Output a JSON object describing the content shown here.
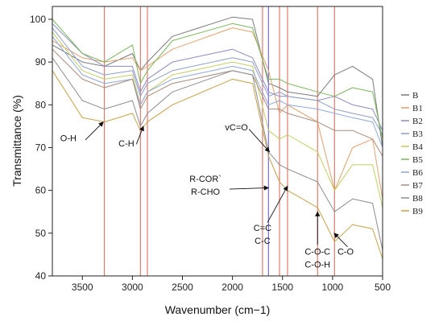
{
  "chart_data": {
    "type": "line",
    "xlabel": "Wavenumber (cm−1)",
    "ylabel": "Transmittance (%)",
    "xlim": [
      3800,
      500
    ],
    "ylim": [
      40,
      103
    ],
    "x_reversed": true,
    "x_ticks": [
      3500,
      3000,
      2500,
      2000,
      1500,
      1000,
      500
    ],
    "y_ticks": [
      40,
      50,
      60,
      70,
      80,
      90,
      100
    ],
    "reference_lines": [
      {
        "x": 3280,
        "color": "#e07b6e"
      },
      {
        "x": 2920,
        "color": "#e07b6e"
      },
      {
        "x": 2850,
        "color": "#e07b6e"
      },
      {
        "x": 1700,
        "color": "#e07b6e"
      },
      {
        "x": 1640,
        "color": "#7b6fe0"
      },
      {
        "x": 1530,
        "color": "#e07b6e"
      },
      {
        "x": 1450,
        "color": "#e07b6e"
      },
      {
        "x": 1150,
        "color": "#e07b6e"
      },
      {
        "x": 980,
        "color": "#e07b6e"
      }
    ],
    "annotations": [
      {
        "lines": [
          "O-H"
        ],
        "text_x": 3640,
        "text_y": 71.5,
        "arrow_from": [
          3470,
          71.8
        ],
        "arrow_to": [
          3290,
          76
        ]
      },
      {
        "lines": [
          "C-H"
        ],
        "text_x": 3060,
        "text_y": 70.3,
        "arrow_from": [
          2960,
          70.8
        ],
        "arrow_to": [
          2890,
          75
        ]
      },
      {
        "lines": [
          "vC=O"
        ],
        "text_x": 1960,
        "text_y": 74,
        "arrow_from": [
          1835,
          74.3
        ],
        "arrow_to": [
          1630,
          69
        ]
      },
      {
        "lines": [
          "R-COR`",
          "R-CHO"
        ],
        "text_x": 2270,
        "text_y": 62,
        "arrow_from": [
          2030,
          60.3
        ],
        "arrow_to": [
          1640,
          60.6
        ]
      },
      {
        "lines": [
          "C=C",
          "C-C"
        ],
        "text_x": 1700,
        "text_y": 50.5,
        "arrow_from": [
          1650,
          52.5
        ],
        "arrow_to": [
          1450,
          61
        ]
      },
      {
        "lines": [
          "C-O-C",
          "C-O-H"
        ],
        "text_x": 1150,
        "text_y": 45,
        "arrow_from": [
          1150,
          47.3
        ],
        "arrow_to": [
          1150,
          55
        ]
      },
      {
        "lines": [
          "C-O"
        ],
        "text_x": 870,
        "text_y": 45,
        "arrow_from": [
          850,
          46.8
        ],
        "arrow_to": [
          985,
          50
        ]
      }
    ],
    "legend_position": "right",
    "series": [
      {
        "name": "B",
        "color": "#7a7a7a",
        "x": [
          3800,
          3500,
          3280,
          3000,
          2920,
          2850,
          2600,
          2000,
          1800,
          1640,
          1530,
          1450,
          1150,
          980,
          800,
          600,
          500
        ],
        "y": [
          94,
          90,
          89,
          92,
          88,
          90,
          96,
          100.5,
          100,
          85,
          84,
          83,
          82,
          87,
          89,
          86,
          70
        ]
      },
      {
        "name": "B1",
        "color": "#e3a16f",
        "x": [
          3800,
          3500,
          3280,
          3000,
          2920,
          2850,
          2600,
          2000,
          1800,
          1640,
          1530,
          1450,
          1150,
          980,
          800,
          600,
          500
        ],
        "y": [
          95,
          91,
          90,
          91,
          88,
          89,
          93,
          98,
          97,
          88,
          78,
          80,
          76,
          60,
          70,
          72,
          58
        ]
      },
      {
        "name": "B2",
        "color": "#8a8ac4",
        "x": [
          3800,
          3500,
          3280,
          3000,
          2920,
          2850,
          2600,
          2000,
          1800,
          1640,
          1530,
          1450,
          1150,
          980,
          800,
          600,
          500
        ],
        "y": [
          99,
          92,
          89,
          89,
          83,
          86,
          90,
          93,
          91,
          83,
          82,
          82,
          81,
          82,
          80,
          79,
          74
        ]
      },
      {
        "name": "B3",
        "color": "#8fa0c4",
        "x": [
          3800,
          3500,
          3280,
          3000,
          2920,
          2850,
          2600,
          2000,
          1800,
          1640,
          1530,
          1450,
          1150,
          980,
          800,
          600,
          500
        ],
        "y": [
          98,
          89,
          87,
          88,
          82,
          85,
          88,
          91,
          90,
          82,
          83,
          82,
          81,
          79,
          78,
          77,
          73
        ]
      },
      {
        "name": "B4",
        "color": "#c2cf66",
        "x": [
          3800,
          3500,
          3280,
          3000,
          2920,
          2850,
          2600,
          2000,
          1800,
          1640,
          1530,
          1450,
          1150,
          980,
          800,
          600,
          500
        ],
        "y": [
          97,
          88,
          86,
          87,
          80,
          83,
          87,
          90,
          89,
          74,
          72,
          73,
          69,
          60,
          66,
          66,
          56
        ]
      },
      {
        "name": "B5",
        "color": "#7ab85e",
        "x": [
          3800,
          3500,
          3280,
          3000,
          2920,
          2850,
          2600,
          2000,
          1800,
          1640,
          1530,
          1450,
          1150,
          980,
          800,
          600,
          500
        ],
        "y": [
          100,
          92,
          90,
          94,
          85,
          88,
          95,
          99,
          98,
          86,
          86,
          85,
          83,
          82,
          84,
          83,
          72
        ]
      },
      {
        "name": "B6",
        "color": "#8ea8d8",
        "x": [
          3800,
          3500,
          3280,
          3000,
          2920,
          2850,
          2600,
          2000,
          1800,
          1640,
          1530,
          1450,
          1150,
          980,
          800,
          600,
          500
        ],
        "y": [
          96,
          87,
          85,
          86,
          80,
          83,
          86,
          89,
          88,
          80,
          81,
          80,
          79,
          78,
          77,
          76,
          70
        ]
      },
      {
        "name": "B7",
        "color": "#a98a7a",
        "x": [
          3800,
          3500,
          3280,
          3000,
          2920,
          2850,
          2600,
          2000,
          1800,
          1640,
          1530,
          1450,
          1150,
          980,
          800,
          600,
          500
        ],
        "y": [
          93,
          86,
          84,
          86,
          79,
          82,
          85,
          88,
          87,
          79,
          79,
          78,
          76,
          74,
          74,
          72,
          68
        ]
      },
      {
        "name": "B8",
        "color": "#8c8c8c",
        "x": [
          3800,
          3500,
          3280,
          3000,
          2920,
          2850,
          2600,
          2000,
          1800,
          1640,
          1530,
          1450,
          1150,
          980,
          800,
          600,
          500
        ],
        "y": [
          91,
          81,
          79,
          81,
          75,
          78,
          83,
          88,
          87,
          69,
          66,
          65,
          62,
          55,
          58,
          57,
          46
        ]
      },
      {
        "name": "B9",
        "color": "#c8a24a",
        "x": [
          3800,
          3500,
          3280,
          3000,
          2920,
          2850,
          2600,
          2000,
          1800,
          1640,
          1530,
          1450,
          1150,
          980,
          800,
          600,
          500
        ],
        "y": [
          88,
          77,
          76,
          78,
          74,
          76,
          80,
          86,
          85,
          68,
          62,
          60,
          56,
          48,
          52,
          51,
          44
        ]
      }
    ]
  }
}
